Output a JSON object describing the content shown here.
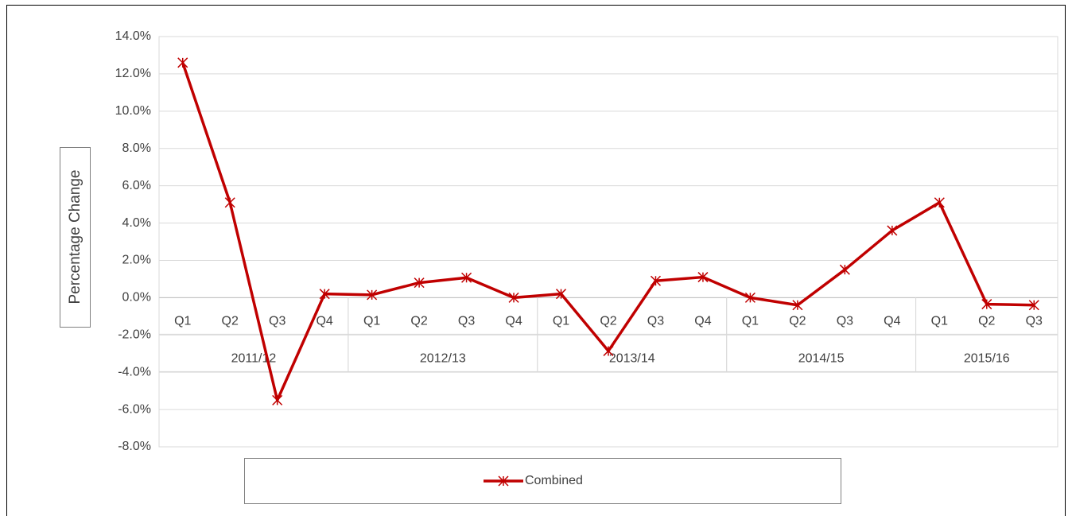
{
  "chart_data": {
    "type": "line",
    "y_axis_label": "Percentage Change",
    "categories": [
      "Q1",
      "Q2",
      "Q3",
      "Q4",
      "Q1",
      "Q2",
      "Q3",
      "Q4",
      "Q1",
      "Q2",
      "Q3",
      "Q4",
      "Q1",
      "Q2",
      "Q3",
      "Q4",
      "Q1",
      "Q2",
      "Q3"
    ],
    "category_groups": [
      {
        "name": "2011/12",
        "count": 4
      },
      {
        "name": "2012/13",
        "count": 4
      },
      {
        "name": "2013/14",
        "count": 4
      },
      {
        "name": "2014/15",
        "count": 4
      },
      {
        "name": "2015/16",
        "count": 3
      }
    ],
    "series": [
      {
        "name": "Combined",
        "color": "#c00000",
        "values": [
          12.6,
          5.1,
          -5.5,
          0.2,
          0.15,
          0.8,
          1.07,
          0.0,
          0.2,
          -2.86,
          0.9,
          1.1,
          0.0,
          -0.4,
          1.5,
          3.6,
          5.1,
          -0.35,
          -0.4
        ]
      }
    ],
    "ylim": [
      -8,
      14
    ],
    "yticks": [
      {
        "value": 14,
        "label": "14.0%"
      },
      {
        "value": 12,
        "label": "12.0%"
      },
      {
        "value": 10,
        "label": "10.0%"
      },
      {
        "value": 8,
        "label": "8.0%"
      },
      {
        "value": 6,
        "label": "6.0%"
      },
      {
        "value": 4,
        "label": "4.0%"
      },
      {
        "value": 2,
        "label": "2.0%"
      },
      {
        "value": 0,
        "label": "0.0%"
      },
      {
        "value": -2,
        "label": "-2.0%"
      },
      {
        "value": -4,
        "label": "-4.0%"
      },
      {
        "value": -6,
        "label": "-6.0%"
      },
      {
        "value": -8,
        "label": "-8.0%"
      }
    ],
    "grid": true,
    "legend": "bottom"
  }
}
